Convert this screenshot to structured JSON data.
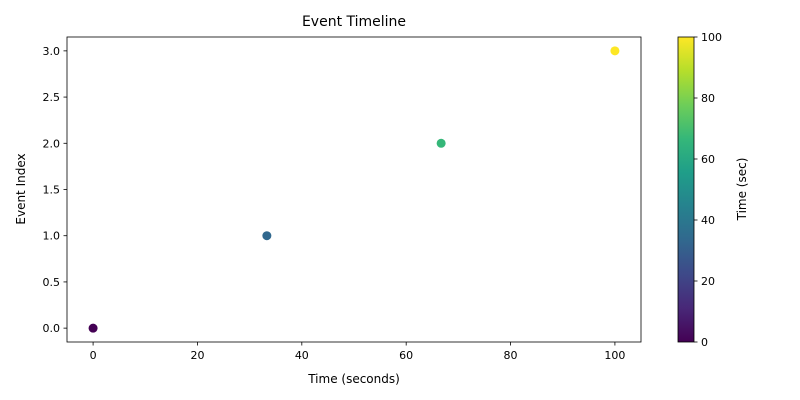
{
  "chart_data": {
    "type": "scatter",
    "title": "Event Timeline",
    "xlabel": "Time (seconds)",
    "ylabel": "Event Index",
    "xlim": [
      -5,
      105
    ],
    "ylim": [
      -0.15,
      3.15
    ],
    "x_ticks": [
      0,
      20,
      40,
      60,
      80,
      100
    ],
    "x_tick_labels": [
      "0",
      "20",
      "40",
      "60",
      "80",
      "100"
    ],
    "y_ticks": [
      0,
      0.5,
      1,
      1.5,
      2,
      2.5,
      3
    ],
    "y_tick_labels": [
      "0.0",
      "0.5",
      "1.0",
      "1.5",
      "2.0",
      "2.5",
      "3.0"
    ],
    "grid": false,
    "points": [
      {
        "x": 0,
        "y": 0,
        "color": "#440154"
      },
      {
        "x": 33.3,
        "y": 1,
        "color": "#31688e"
      },
      {
        "x": 66.7,
        "y": 2,
        "color": "#35b779"
      },
      {
        "x": 100,
        "y": 3,
        "color": "#fde725"
      }
    ],
    "colorbar": {
      "label": "Time (sec)",
      "colormap": "viridis",
      "range": [
        0,
        100
      ],
      "ticks": [
        0,
        20,
        40,
        60,
        80,
        100
      ],
      "tick_labels": [
        "0",
        "20",
        "40",
        "60",
        "80",
        "100"
      ],
      "colors": [
        "#440154",
        "#482878",
        "#3e4989",
        "#31688e",
        "#26828e",
        "#1f9e89",
        "#35b779",
        "#6ece58",
        "#b5de2b",
        "#fde725"
      ]
    }
  }
}
